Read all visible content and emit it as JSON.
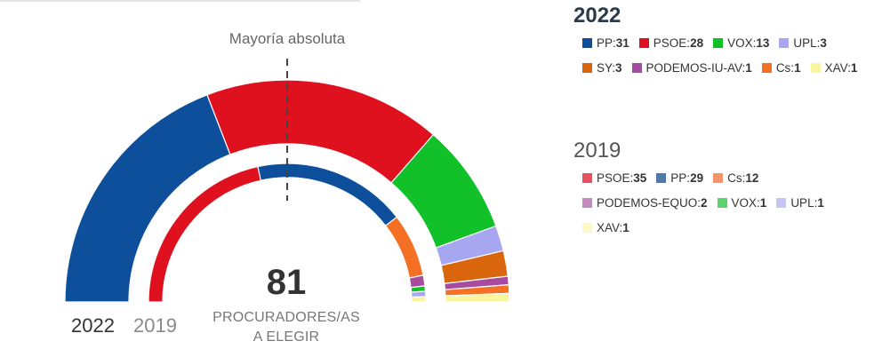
{
  "chart_data": {
    "type": "hemicycle",
    "title": "",
    "total_seats": 81,
    "total_caption": [
      "PROCURADORES/AS",
      "A ELEGIR"
    ],
    "majority_label": "Mayoría absoluta",
    "outer_ring_label": "2022",
    "inner_ring_label": "2019",
    "series": [
      {
        "name": "2022",
        "parties": [
          {
            "label": "PP",
            "seats": 31,
            "color": "#0e4f9c"
          },
          {
            "label": "PSOE",
            "seats": 28,
            "color": "#e0111f"
          },
          {
            "label": "VOX",
            "seats": 13,
            "color": "#12c12a"
          },
          {
            "label": "UPL",
            "seats": 3,
            "color": "#a7a6f0"
          },
          {
            "label": "SY",
            "seats": 3,
            "color": "#d9650d"
          },
          {
            "label": "PODEMOS-IU-AV",
            "seats": 1,
            "color": "#a84a9f"
          },
          {
            "label": "Cs",
            "seats": 1,
            "color": "#f37024"
          },
          {
            "label": "XAV",
            "seats": 1,
            "color": "#f8f4a0"
          }
        ]
      },
      {
        "name": "2019",
        "parties": [
          {
            "label": "PSOE",
            "seats": 35,
            "color": "#e0111f"
          },
          {
            "label": "PP",
            "seats": 29,
            "color": "#0e4f9c"
          },
          {
            "label": "Cs",
            "seats": 12,
            "color": "#f37024"
          },
          {
            "label": "PODEMOS-EQUO",
            "seats": 2,
            "color": "#a84a9f"
          },
          {
            "label": "VOX",
            "seats": 1,
            "color": "#12c12a"
          },
          {
            "label": "UPL",
            "seats": 1,
            "color": "#a7a6f0"
          },
          {
            "label": "XAV",
            "seats": 1,
            "color": "#f8f4a0"
          }
        ]
      }
    ],
    "legend_2019": [
      {
        "label": "PSOE",
        "seats": 35,
        "color": "#e9505e"
      },
      {
        "label": "PP",
        "seats": 29,
        "color": "#4e79a9"
      },
      {
        "label": "Cs",
        "seats": 12,
        "color": "#f5946a"
      },
      {
        "label": "PODEMOS-EQUO",
        "seats": 2,
        "color": "#c489be"
      },
      {
        "label": "VOX",
        "seats": 1,
        "color": "#5bd26b"
      },
      {
        "label": "UPL",
        "seats": 1,
        "color": "#c7c5f5"
      },
      {
        "label": "XAV",
        "seats": 1,
        "color": "#fbf8c4"
      }
    ]
  }
}
